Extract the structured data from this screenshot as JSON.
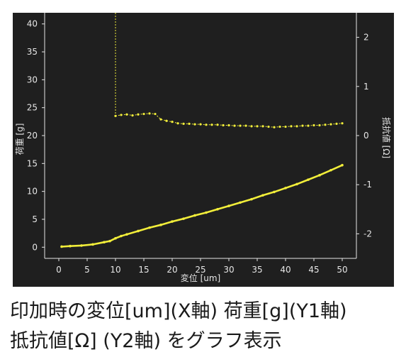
{
  "caption": {
    "line1": "印加時の変位[um](X軸) 荷重[g](Y1軸)",
    "line2": "抵抗値[Ω] (Y2軸) をグラフ表示"
  },
  "colors": {
    "background": "#1f1f1f",
    "series": "#f2ee3a",
    "axis_text": "#e6e6e6"
  },
  "chart_data": {
    "type": "line",
    "title": "",
    "xlabel": "変位 [um]",
    "ylabel": "荷重 [g]",
    "y2label": "抵抗値 [Ω]",
    "xlim": [
      -2.5,
      52.5
    ],
    "ylim": [
      -2,
      42
    ],
    "y2lim": [
      -2.5,
      2.5
    ],
    "xticks": [
      0,
      5,
      10,
      15,
      20,
      25,
      30,
      35,
      40,
      45,
      50
    ],
    "yticks": [
      0,
      5,
      10,
      15,
      20,
      25,
      30,
      35,
      40
    ],
    "y2ticks": [
      2,
      1,
      0,
      -1,
      -2
    ],
    "grid": false,
    "series": [
      {
        "axis": "y1",
        "x": [
          0.5,
          2,
          4,
          6,
          8,
          9,
          10,
          11,
          12,
          14,
          16,
          18,
          20,
          22,
          24,
          26,
          28,
          30,
          32,
          34,
          36,
          38,
          40,
          42,
          44,
          46,
          48,
          50
        ],
        "values": [
          0.1,
          0.2,
          0.3,
          0.5,
          0.9,
          1.1,
          1.6,
          2.0,
          2.3,
          2.9,
          3.5,
          4.0,
          4.6,
          5.1,
          5.7,
          6.2,
          6.8,
          7.4,
          8.0,
          8.6,
          9.3,
          9.9,
          10.6,
          11.3,
          12.1,
          12.9,
          13.8,
          14.7
        ]
      },
      {
        "axis": "y2",
        "x": [
          10,
          11,
          12,
          13,
          14,
          15,
          16,
          17,
          18,
          19,
          20,
          21,
          22,
          23,
          24,
          25,
          26,
          27,
          28,
          29,
          30,
          31,
          32,
          33,
          34,
          35,
          36,
          37,
          38,
          39,
          40,
          41,
          42,
          43,
          44,
          45,
          46,
          47,
          48,
          49,
          50
        ],
        "values": [
          0.4,
          0.42,
          0.43,
          0.41,
          0.43,
          0.44,
          0.45,
          0.44,
          0.33,
          0.3,
          0.28,
          0.25,
          0.24,
          0.24,
          0.23,
          0.23,
          0.22,
          0.22,
          0.22,
          0.21,
          0.21,
          0.2,
          0.2,
          0.2,
          0.19,
          0.19,
          0.19,
          0.18,
          0.17,
          0.18,
          0.18,
          0.19,
          0.19,
          0.2,
          0.2,
          0.21,
          0.21,
          0.22,
          0.23,
          0.24,
          0.25
        ]
      }
    ],
    "spike": {
      "x": 10,
      "y2_from": 0.4,
      "y2_to": 2.5
    }
  }
}
